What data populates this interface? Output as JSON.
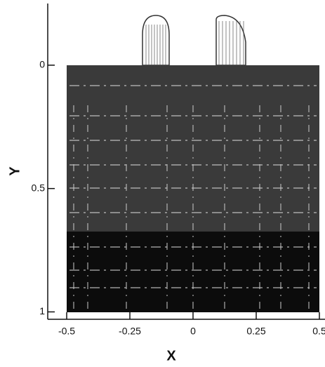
{
  "chart_data": {
    "type": "mesh",
    "xlabel": "X",
    "ylabel": "Y",
    "xlim": [
      -0.575,
      0.525
    ],
    "ylim": [
      1.03,
      -0.25
    ],
    "xticks": [
      -0.5,
      -0.25,
      0,
      0.25,
      0.5
    ],
    "yticks": [
      0,
      0.5,
      1
    ]
  }
}
